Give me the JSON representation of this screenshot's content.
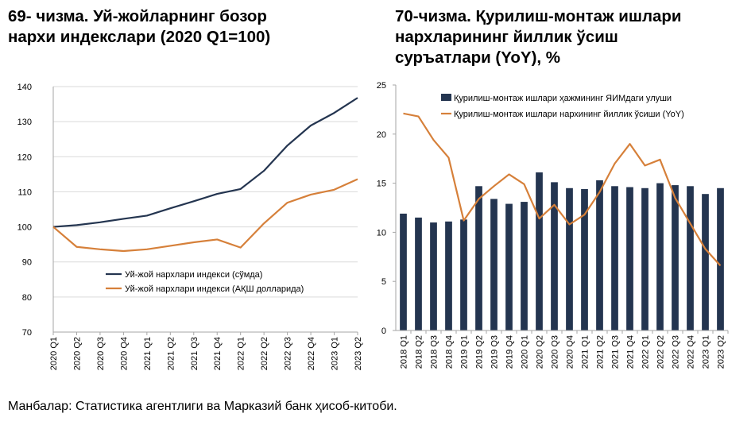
{
  "charts": [
    {
      "title_lines": [
        "69- чизма. Уй-жойларнинг бозор",
        "нархи индекслари (2020 Q1=100)"
      ],
      "legend": {
        "som": "Уй-жой нархлари индекси (сўмда)",
        "usd": "Уй-жой нархлари индекси (АҚШ долларида)"
      }
    },
    {
      "title_lines": [
        "70-чизма. Қурилиш-монтаж ишлари",
        "нархларининг йиллик ўсиш",
        "суръатлари (YoY), %"
      ],
      "legend": {
        "bars": "Қурилиш-монтаж ишлари ҳажмининг ЯИМдаги улуши",
        "line": "Қурилиш-монтаж ишлари нархининг йиллик ўсиши (YoY)"
      }
    }
  ],
  "source": "Манбалар: Статистика агентлиги ва Марказий банк ҳисоб-китоби.",
  "colors": {
    "navy": "#243550",
    "orange": "#d6803a",
    "grid": "#d9d9d9",
    "axis": "#a6a6a6"
  },
  "chart_data": [
    {
      "type": "line",
      "categories": [
        "2020 Q1",
        "2020 Q2",
        "2020 Q3",
        "2020 Q4",
        "2021 Q1",
        "2021 Q2",
        "2021 Q3",
        "2021 Q4",
        "2022 Q1",
        "2022 Q2",
        "2022 Q3",
        "2022 Q4",
        "2023 Q1",
        "2023 Q2"
      ],
      "series": [
        {
          "name": "Уй-жой нархлари индекси (сўмда)",
          "color": "#243550",
          "values": [
            100,
            100.5,
            101.3,
            102.3,
            103.2,
            105.3,
            107.3,
            109.4,
            110.8,
            116.0,
            123.2,
            128.9,
            132.5,
            136.8
          ]
        },
        {
          "name": "Уй-жой нархлари индекси (АҚШ долларида)",
          "color": "#d6803a",
          "values": [
            100,
            94.3,
            93.6,
            93.1,
            93.6,
            94.6,
            95.6,
            96.4,
            94.1,
            101.0,
            106.9,
            109.2,
            110.6,
            113.6
          ]
        }
      ],
      "ylim": [
        70,
        140
      ],
      "yticks": [
        70,
        80,
        90,
        100,
        110,
        120,
        130,
        140
      ],
      "grid": true,
      "legend_position": "bottom-center"
    },
    {
      "type": "bar",
      "categories": [
        "2018 Q1",
        "2018 Q2",
        "2018 Q3",
        "2018 Q4",
        "2019 Q1",
        "2019 Q2",
        "2019 Q3",
        "2019 Q4",
        "2020 Q1",
        "2020 Q2",
        "2020 Q3",
        "2020 Q4",
        "2021 Q1",
        "2021 Q2",
        "2021 Q3",
        "2021 Q4",
        "2022 Q1",
        "2022 Q2",
        "2022 Q3",
        "2022 Q4",
        "2023 Q1",
        "2023 Q2"
      ],
      "series": [
        {
          "name": "Қурилиш-монтаж ишлари ҳажмининг ЯИМдаги улуши",
          "type": "bar",
          "color": "#243550",
          "values": [
            11.9,
            11.5,
            11.0,
            11.1,
            11.3,
            14.7,
            13.4,
            12.9,
            13.1,
            16.1,
            15.1,
            14.5,
            14.4,
            15.3,
            14.7,
            14.6,
            14.5,
            15.0,
            14.8,
            14.7,
            13.9,
            14.5
          ]
        },
        {
          "name": "Қурилиш-монтаж ишлари нархининг йиллик ўсиши (YoY)",
          "type": "line",
          "color": "#d6803a",
          "values": [
            22.1,
            21.8,
            19.4,
            17.6,
            11.2,
            13.4,
            14.7,
            15.9,
            14.9,
            11.4,
            12.8,
            10.8,
            11.8,
            14.1,
            17.0,
            19.0,
            16.8,
            17.4,
            13.5,
            10.9,
            8.3,
            6.6
          ]
        }
      ],
      "ylim": [
        0,
        25
      ],
      "yticks": [
        0,
        5,
        10,
        15,
        20,
        25
      ],
      "grid": false,
      "legend_position": "top-right"
    }
  ]
}
